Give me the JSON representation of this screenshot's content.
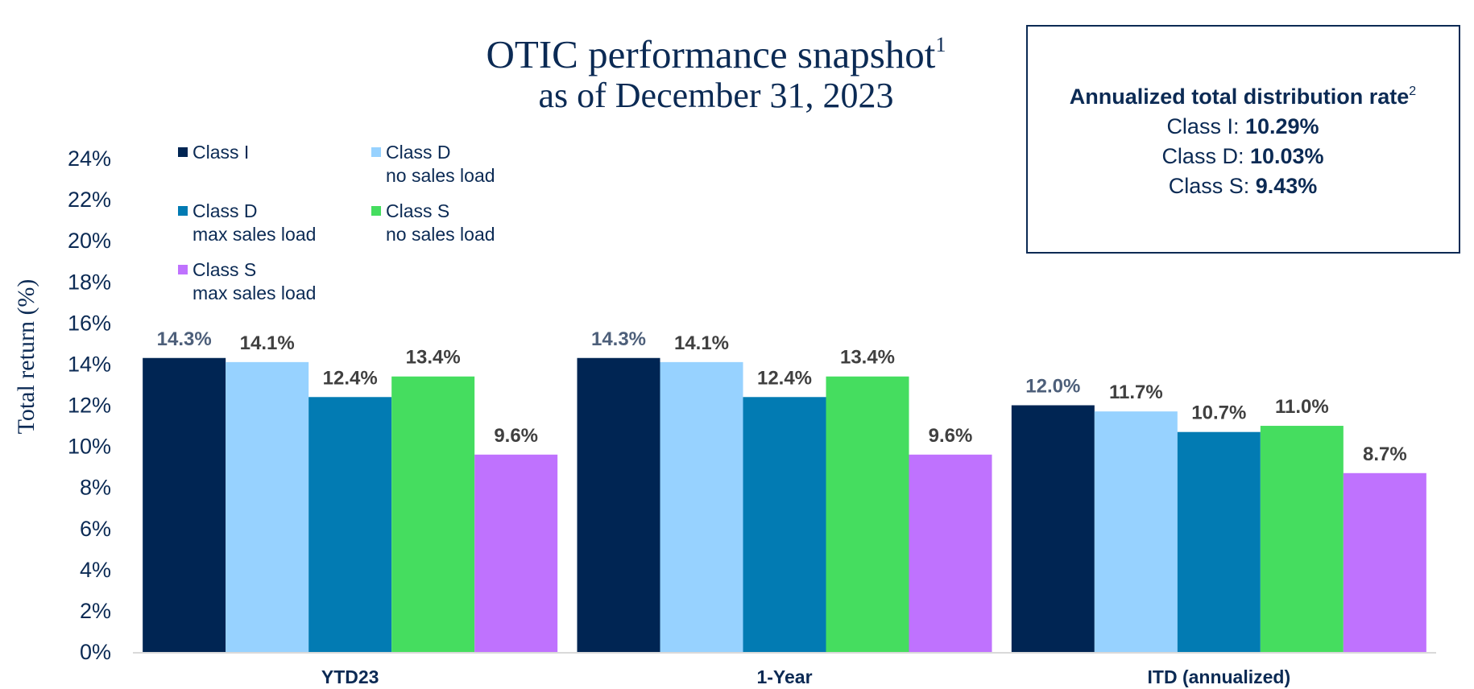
{
  "title": {
    "line1": "OTIC performance snapshot",
    "line1_sup": "1",
    "line2": "as of December 31, 2023"
  },
  "distribution_box": {
    "title": "Annualized total distribution rate",
    "title_sup": "2",
    "rows": [
      {
        "label": "Class I: ",
        "value": "10.29%"
      },
      {
        "label": "Class D: ",
        "value": "10.03%"
      },
      {
        "label": "Class S: ",
        "value": "9.43%"
      }
    ]
  },
  "colors": {
    "text": "#0b2a54",
    "class_i": "#002553",
    "class_d_no_load": "#97d2ff",
    "class_d_max_load": "#027bb3",
    "class_s_no_load": "#45dd5f",
    "class_s_max_load": "#bf72fe",
    "label_dark": "#404040",
    "label_slate": "#4d5f7a",
    "border": "#0b2a54"
  },
  "chart_data": {
    "type": "bar",
    "ylabel": "Total return (%)",
    "xlabel": "",
    "ylim": [
      0,
      24
    ],
    "ytick_step": 2,
    "yticks": [
      "0%",
      "2%",
      "4%",
      "6%",
      "8%",
      "10%",
      "12%",
      "14%",
      "16%",
      "18%",
      "20%",
      "22%",
      "24%"
    ],
    "grid": false,
    "legend_position": "top-left",
    "categories": [
      "YTD23",
      "1-Year",
      "ITD (annualized)"
    ],
    "series": [
      {
        "name": "Class I",
        "legend_lines": [
          "Class I"
        ],
        "color": "#002553",
        "label_color": "#4d5f7a",
        "values": [
          14.3,
          14.3,
          12.0
        ],
        "labels": [
          "14.3%",
          "14.3%",
          "12.0%"
        ]
      },
      {
        "name": "Class D no sales load",
        "legend_lines": [
          "Class D",
          "no sales load"
        ],
        "color": "#97d2ff",
        "label_color": "#404040",
        "values": [
          14.1,
          14.1,
          11.7
        ],
        "labels": [
          "14.1%",
          "14.1%",
          "11.7%"
        ]
      },
      {
        "name": "Class D max sales load",
        "legend_lines": [
          "Class D",
          "max sales load"
        ],
        "color": "#027bb3",
        "label_color": "#404040",
        "values": [
          12.4,
          12.4,
          10.7
        ],
        "labels": [
          "12.4%",
          "12.4%",
          "10.7%"
        ]
      },
      {
        "name": "Class S no sales load",
        "legend_lines": [
          "Class S",
          "no sales load"
        ],
        "color": "#45dd5f",
        "label_color": "#404040",
        "values": [
          13.4,
          13.4,
          11.0
        ],
        "labels": [
          "13.4%",
          "13.4%",
          "11.0%"
        ]
      },
      {
        "name": "Class S max sales load",
        "legend_lines": [
          "Class S",
          "max sales load"
        ],
        "color": "#bf72fe",
        "label_color": "#404040",
        "values": [
          9.6,
          9.6,
          8.7
        ],
        "labels": [
          "9.6%",
          "9.6%",
          "8.7%"
        ]
      }
    ]
  }
}
